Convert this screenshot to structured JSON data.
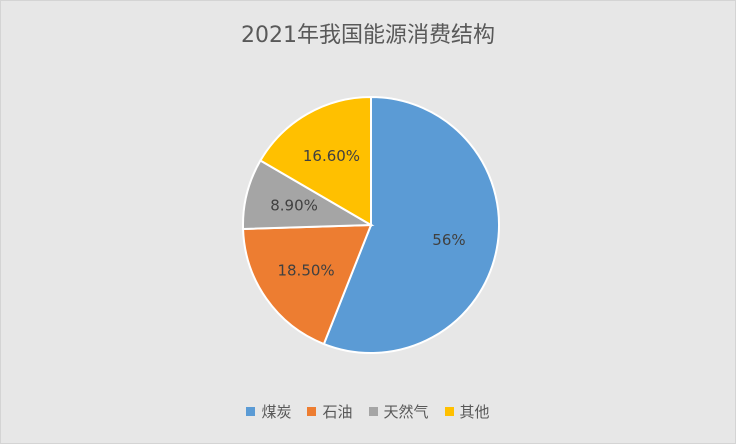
{
  "chart_data": {
    "type": "pie",
    "title": "2021年我国能源消费结构",
    "slices": [
      {
        "name": "煤炭",
        "value": 56,
        "label": "56%",
        "color": "#5b9bd5"
      },
      {
        "name": "石油",
        "value": 18.5,
        "label": "18.50%",
        "color": "#ed7d31"
      },
      {
        "name": "天然气",
        "value": 8.9,
        "label": "8.90%",
        "color": "#a5a5a5"
      },
      {
        "name": "其他",
        "value": 16.6,
        "label": "16.60%",
        "color": "#ffc000"
      }
    ],
    "legend_position": "bottom"
  }
}
